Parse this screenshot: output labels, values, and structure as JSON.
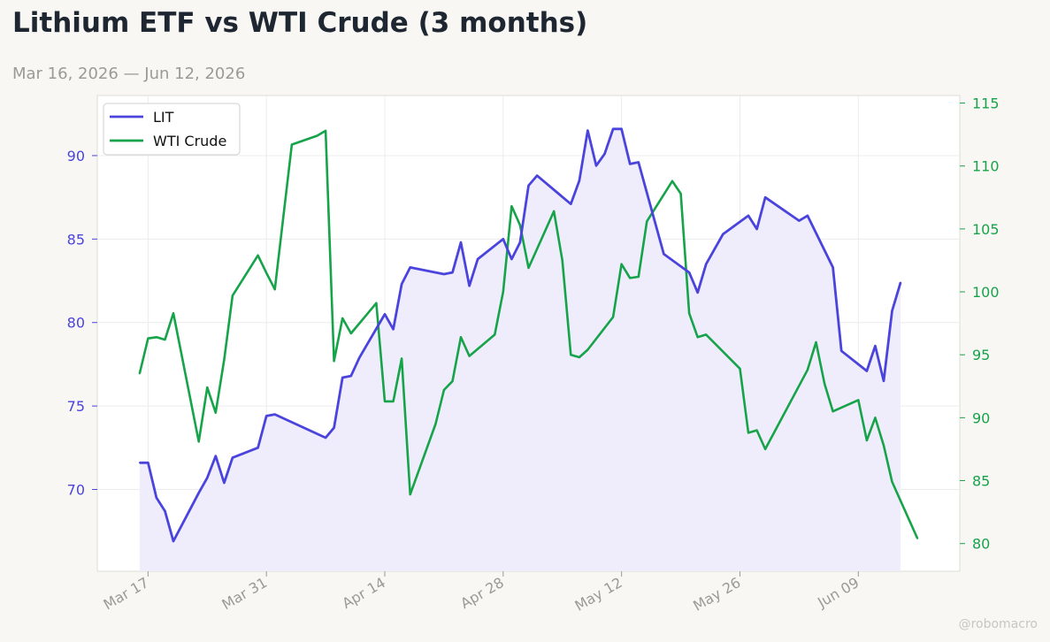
{
  "title": "Lithium ETF vs WTI Crude (3 months)",
  "subtitle": "Mar 16, 2026 — Jun 12, 2026",
  "watermark": "@robomacro",
  "colors": {
    "lit": "#4a44dd",
    "lit_fill": "#efedfb",
    "wti": "#16a34a",
    "axis": "#dddcd6",
    "grid": "#ececec",
    "xtick": "#9a9a96"
  },
  "chart_data": {
    "type": "line",
    "x_axis": {
      "type": "date",
      "ticks": [
        "2026-03-17",
        "2026-03-31",
        "2026-04-14",
        "2026-04-28",
        "2026-05-12",
        "2026-05-26",
        "2026-06-09"
      ],
      "tick_labels": [
        "Mar 17",
        "Mar 31",
        "Apr 14",
        "Apr 28",
        "May 12",
        "May 26",
        "Jun 09"
      ],
      "range": [
        "2026-03-11",
        "2026-06-21"
      ]
    },
    "y_left": {
      "ticks": [
        70,
        75,
        80,
        85,
        90
      ],
      "range": [
        65.1,
        93.6
      ],
      "color": "#4a44dd"
    },
    "y_right": {
      "ticks": [
        80,
        85,
        90,
        95,
        100,
        105,
        110,
        115
      ],
      "range": [
        77.8,
        115.6
      ],
      "color": "#16a34a"
    },
    "grid": true,
    "legend": {
      "position": "top-left",
      "entries": [
        "LIT",
        "WTI Crude"
      ]
    },
    "series": [
      {
        "name": "LIT",
        "axis": "left",
        "filled": true,
        "points": [
          [
            "2026-03-16",
            71.6
          ],
          [
            "2026-03-17",
            71.6
          ],
          [
            "2026-03-18",
            69.5
          ],
          [
            "2026-03-19",
            68.7
          ],
          [
            "2026-03-20",
            66.9
          ],
          [
            "2026-03-23",
            69.8
          ],
          [
            "2026-03-24",
            70.7
          ],
          [
            "2026-03-25",
            72.0
          ],
          [
            "2026-03-26",
            70.4
          ],
          [
            "2026-03-27",
            71.9
          ],
          [
            "2026-03-30",
            72.5
          ],
          [
            "2026-03-31",
            74.4
          ],
          [
            "2026-04-01",
            74.5
          ],
          [
            "2026-04-07",
            73.1
          ],
          [
            "2026-04-08",
            73.7
          ],
          [
            "2026-04-09",
            76.7
          ],
          [
            "2026-04-10",
            76.8
          ],
          [
            "2026-04-11",
            77.9
          ],
          [
            "2026-04-14",
            80.5
          ],
          [
            "2026-04-15",
            79.6
          ],
          [
            "2026-04-16",
            82.3
          ],
          [
            "2026-04-17",
            83.3
          ],
          [
            "2026-04-20",
            83.0
          ],
          [
            "2026-04-21",
            82.9
          ],
          [
            "2026-04-22",
            83.0
          ],
          [
            "2026-04-23",
            84.8
          ],
          [
            "2026-04-24",
            82.2
          ],
          [
            "2026-04-25",
            83.8
          ],
          [
            "2026-04-28",
            85.0
          ],
          [
            "2026-04-29",
            83.8
          ],
          [
            "2026-04-30",
            84.8
          ],
          [
            "2026-05-01",
            88.2
          ],
          [
            "2026-05-02",
            88.8
          ],
          [
            "2026-05-06",
            87.1
          ],
          [
            "2026-05-07",
            88.5
          ],
          [
            "2026-05-08",
            91.5
          ],
          [
            "2026-05-09",
            89.4
          ],
          [
            "2026-05-10",
            90.1
          ],
          [
            "2026-05-11",
            91.6
          ],
          [
            "2026-05-12",
            91.6
          ],
          [
            "2026-05-13",
            89.5
          ],
          [
            "2026-05-14",
            89.6
          ],
          [
            "2026-05-17",
            84.1
          ],
          [
            "2026-05-20",
            83.0
          ],
          [
            "2026-05-21",
            81.8
          ],
          [
            "2026-05-22",
            83.5
          ],
          [
            "2026-05-24",
            85.3
          ],
          [
            "2026-05-27",
            86.4
          ],
          [
            "2026-05-28",
            85.6
          ],
          [
            "2026-05-29",
            87.5
          ],
          [
            "2026-06-02",
            86.1
          ],
          [
            "2026-06-03",
            86.4
          ],
          [
            "2026-06-06",
            83.3
          ],
          [
            "2026-06-07",
            78.3
          ],
          [
            "2026-06-10",
            77.1
          ],
          [
            "2026-06-11",
            78.6
          ],
          [
            "2026-06-12",
            76.5
          ],
          [
            "2026-06-13",
            80.7
          ],
          [
            "2026-06-14",
            82.4
          ]
        ]
      },
      {
        "name": "WTI Crude",
        "axis": "right",
        "filled": false,
        "points": [
          [
            "2026-03-16",
            93.5
          ],
          [
            "2026-03-17",
            96.3
          ],
          [
            "2026-03-18",
            96.4
          ],
          [
            "2026-03-19",
            96.2
          ],
          [
            "2026-03-20",
            98.3
          ],
          [
            "2026-03-23",
            88.1
          ],
          [
            "2026-03-24",
            92.4
          ],
          [
            "2026-03-25",
            90.4
          ],
          [
            "2026-03-26",
            94.6
          ],
          [
            "2026-03-27",
            99.7
          ],
          [
            "2026-03-30",
            102.9
          ],
          [
            "2026-03-31",
            101.5
          ],
          [
            "2026-04-01",
            100.2
          ],
          [
            "2026-04-03",
            111.7
          ],
          [
            "2026-04-06",
            112.4
          ],
          [
            "2026-04-07",
            112.8
          ],
          [
            "2026-04-08",
            94.5
          ],
          [
            "2026-04-09",
            97.9
          ],
          [
            "2026-04-10",
            96.7
          ],
          [
            "2026-04-13",
            99.1
          ],
          [
            "2026-04-14",
            91.3
          ],
          [
            "2026-04-15",
            91.3
          ],
          [
            "2026-04-16",
            94.7
          ],
          [
            "2026-04-17",
            83.9
          ],
          [
            "2026-04-20",
            89.5
          ],
          [
            "2026-04-21",
            92.2
          ],
          [
            "2026-04-22",
            92.9
          ],
          [
            "2026-04-23",
            96.4
          ],
          [
            "2026-04-24",
            94.9
          ],
          [
            "2026-04-27",
            96.6
          ],
          [
            "2026-04-28",
            100.0
          ],
          [
            "2026-04-29",
            106.8
          ],
          [
            "2026-04-30",
            105.3
          ],
          [
            "2026-05-01",
            101.9
          ],
          [
            "2026-05-04",
            106.4
          ],
          [
            "2026-05-05",
            102.5
          ],
          [
            "2026-05-06",
            95.0
          ],
          [
            "2026-05-07",
            94.8
          ],
          [
            "2026-05-08",
            95.4
          ],
          [
            "2026-05-11",
            98.0
          ],
          [
            "2026-05-12",
            102.2
          ],
          [
            "2026-05-13",
            101.1
          ],
          [
            "2026-05-14",
            101.2
          ],
          [
            "2026-05-15",
            105.6
          ],
          [
            "2026-05-18",
            108.8
          ],
          [
            "2026-05-19",
            107.8
          ],
          [
            "2026-05-20",
            98.3
          ],
          [
            "2026-05-21",
            96.4
          ],
          [
            "2026-05-22",
            96.6
          ],
          [
            "2026-05-26",
            93.9
          ],
          [
            "2026-05-27",
            88.8
          ],
          [
            "2026-05-28",
            89.0
          ],
          [
            "2026-05-29",
            87.5
          ],
          [
            "2026-06-03",
            93.8
          ],
          [
            "2026-06-04",
            96.0
          ],
          [
            "2026-06-05",
            92.7
          ],
          [
            "2026-06-06",
            90.5
          ],
          [
            "2026-06-09",
            91.4
          ],
          [
            "2026-06-10",
            88.2
          ],
          [
            "2026-06-11",
            90.0
          ],
          [
            "2026-06-12",
            87.8
          ],
          [
            "2026-06-13",
            84.9
          ],
          [
            "2026-06-16",
            80.4
          ]
        ]
      }
    ]
  }
}
